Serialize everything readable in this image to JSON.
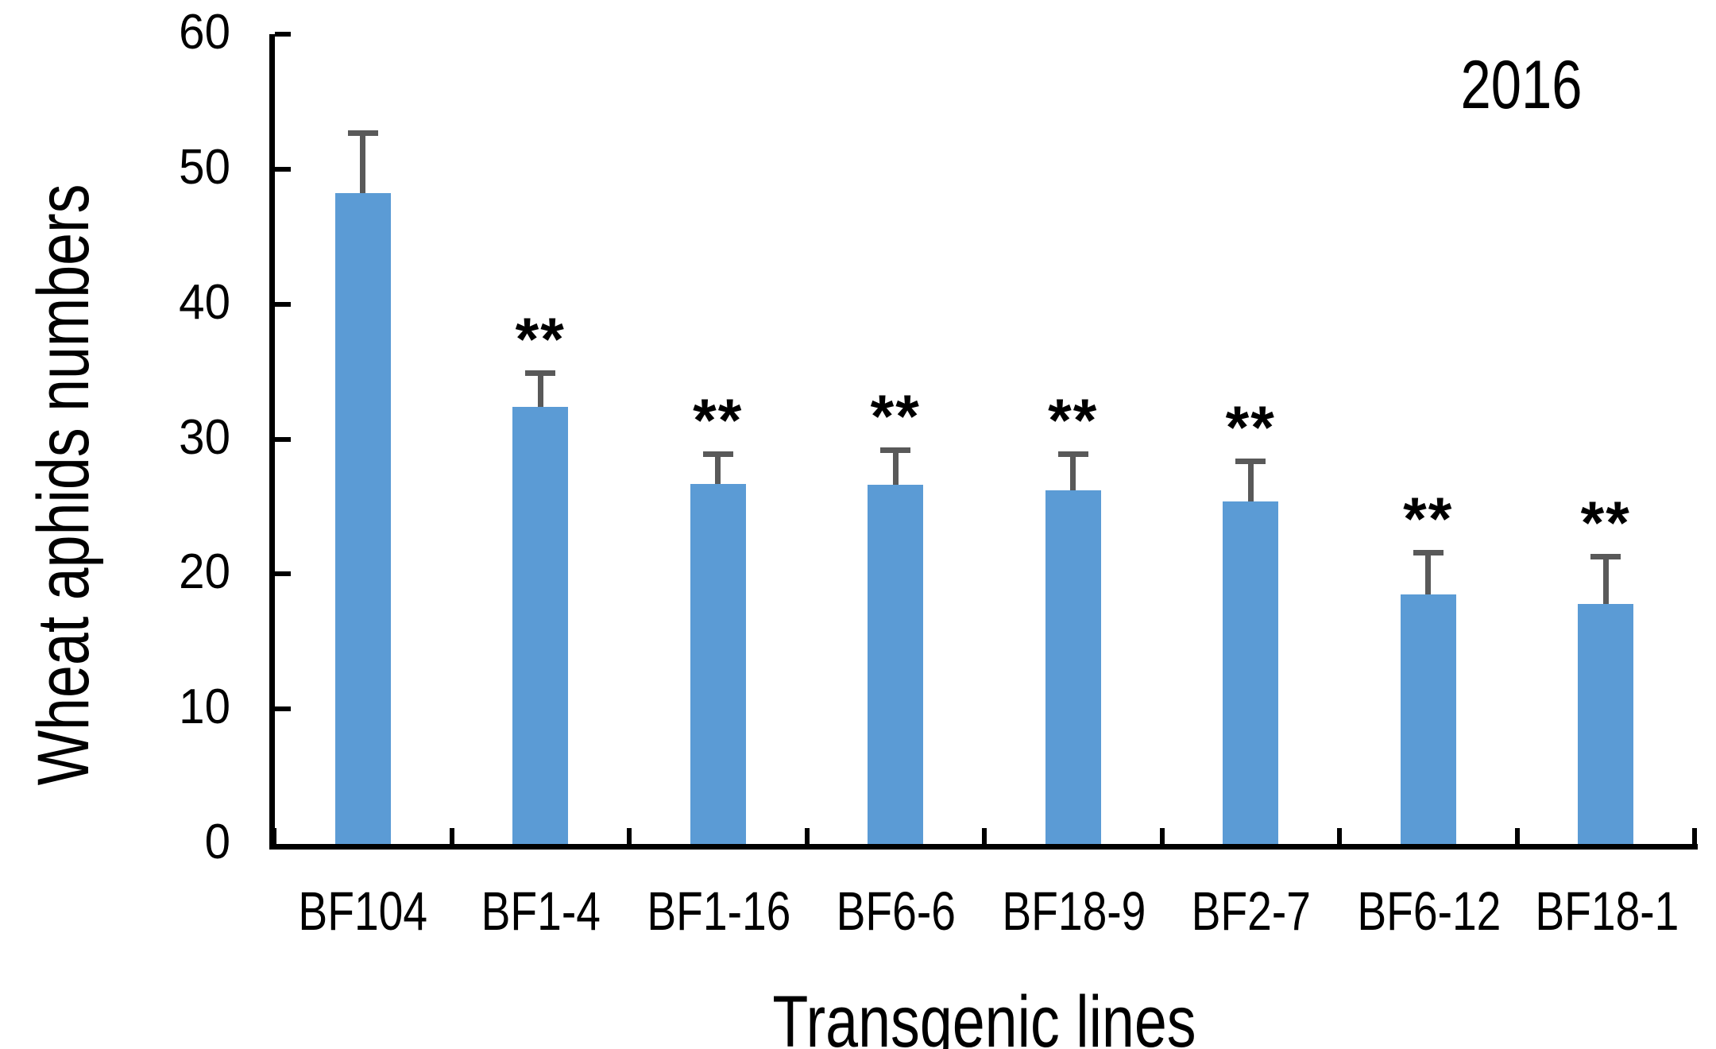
{
  "chart_data": {
    "type": "bar",
    "title": "",
    "annotation": "2016",
    "xlabel": "Transgenic lines",
    "ylabel": "Wheat aphids numbers",
    "categories": [
      "BF104",
      "BF1-4",
      "BF1-16",
      "BF6-6",
      "BF18-9",
      "BF2-7",
      "BF6-12",
      "BF18-1"
    ],
    "values": [
      48.2,
      32.4,
      26.7,
      26.6,
      26.2,
      25.4,
      18.5,
      17.8
    ],
    "errors_plus": [
      4.5,
      2.5,
      2.2,
      2.6,
      2.7,
      3.0,
      3.1,
      3.5
    ],
    "significance": [
      "",
      "**",
      "**",
      "**",
      "**",
      "**",
      "**",
      "**"
    ],
    "ylim": [
      0,
      60
    ],
    "yticks": [
      0,
      10,
      20,
      30,
      40,
      50,
      60
    ],
    "grid": false,
    "legend_position": "none",
    "bar_color": "#5B9BD5",
    "error_bar_color": "#595959",
    "axis_color": "#000000",
    "text_color": "#000000"
  }
}
